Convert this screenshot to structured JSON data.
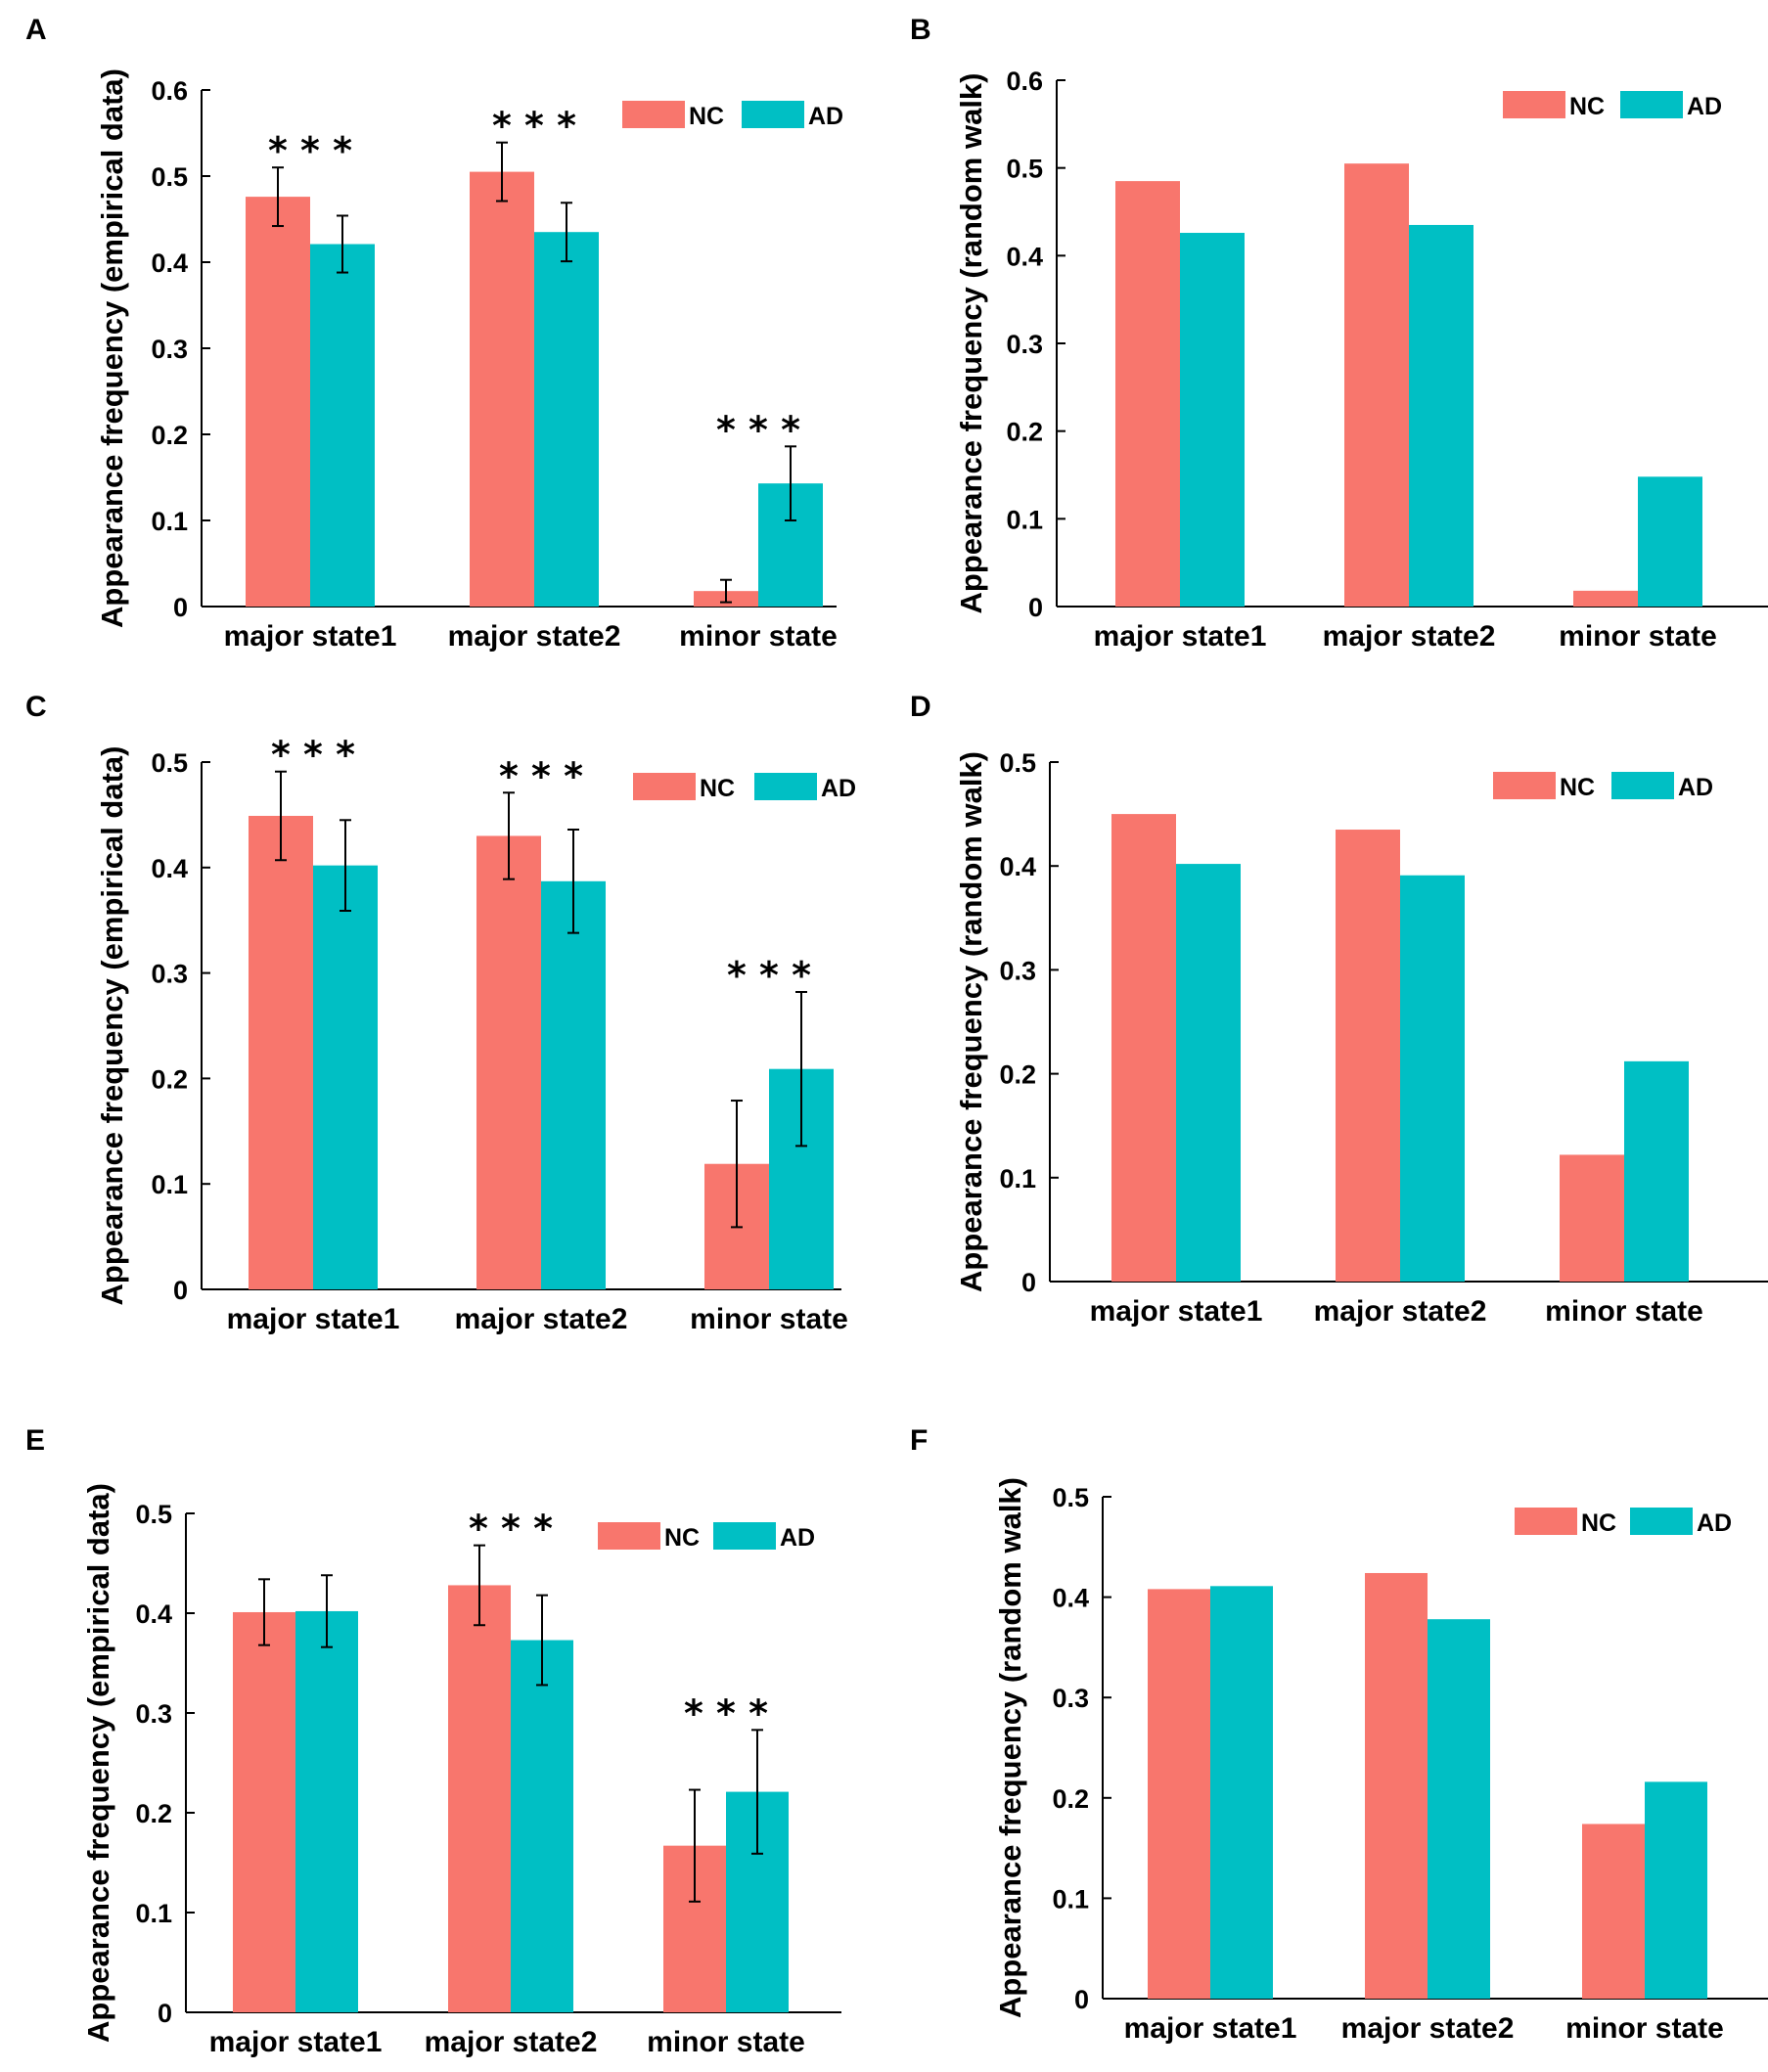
{
  "figure": {
    "colors": {
      "NC": "#f8766d",
      "AD": "#00bfc4"
    },
    "significance_marker": "* * *"
  },
  "chart_data": [
    {
      "panel": "A",
      "type": "bar",
      "title": "",
      "xlabel": "",
      "ylabel": "Appearance frequency (empirical data)",
      "categories": [
        "major state1",
        "major state2",
        "minor state"
      ],
      "series": [
        {
          "name": "NC",
          "values": [
            0.476,
            0.505,
            0.018
          ],
          "errors": [
            0.034,
            0.034,
            0.013
          ]
        },
        {
          "name": "AD",
          "values": [
            0.421,
            0.435,
            0.143
          ],
          "errors": [
            0.033,
            0.034,
            0.043
          ]
        }
      ],
      "significance": [
        true,
        true,
        true
      ],
      "ylim": [
        0,
        0.6
      ],
      "yticks": [
        0,
        0.1,
        0.2,
        0.3,
        0.4,
        0.5,
        0.6
      ],
      "legend_position": "top-right"
    },
    {
      "panel": "B",
      "type": "bar",
      "title": "",
      "xlabel": "",
      "ylabel": "Appearance frequency (random walk)",
      "categories": [
        "major state1",
        "major state2",
        "minor state"
      ],
      "series": [
        {
          "name": "NC",
          "values": [
            0.485,
            0.505,
            0.018
          ]
        },
        {
          "name": "AD",
          "values": [
            0.426,
            0.435,
            0.148
          ]
        }
      ],
      "ylim": [
        0,
        0.6
      ],
      "yticks": [
        0,
        0.1,
        0.2,
        0.3,
        0.4,
        0.5,
        0.6
      ],
      "legend_position": "top-right"
    },
    {
      "panel": "C",
      "type": "bar",
      "title": "",
      "xlabel": "",
      "ylabel": "Appearance frequency (empirical data)",
      "categories": [
        "major state1",
        "major state2",
        "minor state"
      ],
      "series": [
        {
          "name": "NC",
          "values": [
            0.449,
            0.43,
            0.119
          ],
          "errors": [
            0.042,
            0.041,
            0.06
          ]
        },
        {
          "name": "AD",
          "values": [
            0.402,
            0.387,
            0.209
          ],
          "errors": [
            0.043,
            0.049,
            0.073
          ]
        }
      ],
      "significance": [
        true,
        true,
        true
      ],
      "ylim": [
        0,
        0.5
      ],
      "yticks": [
        0,
        0.1,
        0.2,
        0.3,
        0.4,
        0.5
      ],
      "legend_position": "top-right"
    },
    {
      "panel": "D",
      "type": "bar",
      "title": "",
      "xlabel": "",
      "ylabel": "Appearance frequency (random walk)",
      "categories": [
        "major state1",
        "major state2",
        "minor state"
      ],
      "series": [
        {
          "name": "NC",
          "values": [
            0.45,
            0.435,
            0.122
          ]
        },
        {
          "name": "AD",
          "values": [
            0.402,
            0.391,
            0.212
          ]
        }
      ],
      "ylim": [
        0,
        0.5
      ],
      "yticks": [
        0,
        0.1,
        0.2,
        0.3,
        0.4,
        0.5
      ],
      "legend_position": "top-right"
    },
    {
      "panel": "E",
      "type": "bar",
      "title": "",
      "xlabel": "",
      "ylabel": "Appearance frequency (empirical data)",
      "categories": [
        "major state1",
        "major state2",
        "minor state"
      ],
      "series": [
        {
          "name": "NC",
          "values": [
            0.401,
            0.428,
            0.167
          ],
          "errors": [
            0.033,
            0.04,
            0.056
          ]
        },
        {
          "name": "AD",
          "values": [
            0.402,
            0.373,
            0.221
          ],
          "errors": [
            0.036,
            0.045,
            0.062
          ]
        }
      ],
      "significance": [
        false,
        true,
        true
      ],
      "ylim": [
        0,
        0.5
      ],
      "yticks": [
        0,
        0.1,
        0.2,
        0.3,
        0.4,
        0.5
      ],
      "legend_position": "top-right"
    },
    {
      "panel": "F",
      "type": "bar",
      "title": "",
      "xlabel": "",
      "ylabel": "Appearance frequency (random walk)",
      "categories": [
        "major state1",
        "major state2",
        "minor state"
      ],
      "series": [
        {
          "name": "NC",
          "values": [
            0.408,
            0.424,
            0.174
          ]
        },
        {
          "name": "AD",
          "values": [
            0.411,
            0.378,
            0.216
          ]
        }
      ],
      "ylim": [
        0,
        0.5
      ],
      "yticks": [
        0,
        0.1,
        0.2,
        0.3,
        0.4,
        0.5
      ],
      "legend_position": "top-right"
    }
  ]
}
